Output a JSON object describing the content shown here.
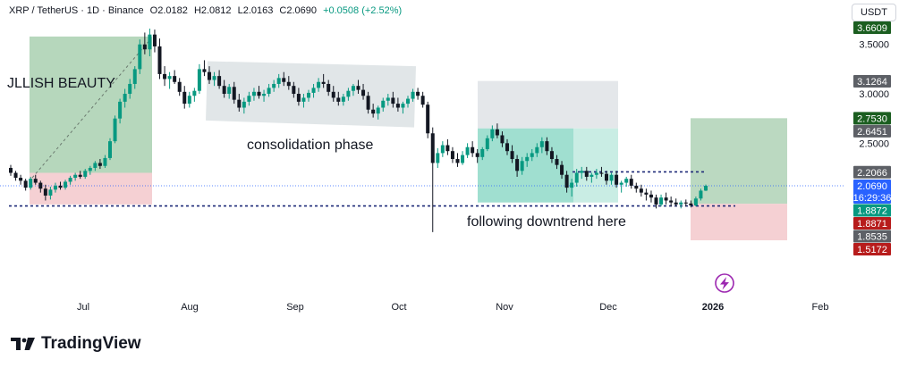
{
  "header": {
    "symbol": "XRP / TetherUS · 1D · Binance",
    "open": "O2.0182",
    "high": "H2.0812",
    "low": "L2.0163",
    "close": "C2.0690",
    "change": "+0.0508 (+2.52%)"
  },
  "currency_button": "USDT",
  "brand_name": "TradingView",
  "icons": {
    "logo": "tradingview-logo-icon",
    "event": "lightning-bolt-icon"
  },
  "colors": {
    "up": "#089981",
    "down": "#131722",
    "accent": "#2962ff",
    "target_zone": "#9ec9a6",
    "stop_zone": "#f2c4c8",
    "grey_zone": "#dfe3e6",
    "teal_zone": "#8fd9c8"
  },
  "chart_data": {
    "type": "candlestick",
    "instrument": "XRP / TetherUS",
    "interval": "1D",
    "exchange": "Binance",
    "last_bar": {
      "open": 2.0182,
      "high": 2.0812,
      "low": 2.0163,
      "close": 2.069,
      "change": 0.0508,
      "change_pct": 2.52
    },
    "y_ticks": [
      3.5,
      3.0,
      2.5
    ],
    "x_ticks": [
      "Jul",
      "Aug",
      "Sep",
      "Oct",
      "Nov",
      "Dec",
      "2026",
      "Feb"
    ],
    "price_labels": [
      {
        "text": "3.6609",
        "value": 3.6609,
        "color": "#1b5e20"
      },
      {
        "text": "3.1264",
        "value": 3.1264,
        "color": "#5d6066"
      },
      {
        "text": "2.7530",
        "value": 2.753,
        "color": "#1b5e20"
      },
      {
        "text": "2.6451",
        "value": 2.6451,
        "color": "#5d6066"
      },
      {
        "text": "2.2066",
        "value": 2.2066,
        "color": "#5d6066"
      },
      {
        "text": "2.0690",
        "value": 2.069,
        "color": "#2962ff",
        "sub": "16:29:36"
      },
      {
        "text": "1.8872",
        "value": 1.8872,
        "color": "#089981"
      },
      {
        "text": "1.8871",
        "value": 1.8871,
        "color": "#b71c1c"
      },
      {
        "text": "1.8535",
        "value": 1.8535,
        "color": "#5d6066"
      },
      {
        "text": "1.5172",
        "value": 1.5172,
        "color": "#b71c1c"
      }
    ],
    "annotations": [
      "JLLISH BEAUTY",
      "consolidation phase",
      "following downtrend here"
    ],
    "candles": [
      [
        2.25,
        2.28,
        2.17,
        2.2
      ],
      [
        2.2,
        2.22,
        2.12,
        2.15
      ],
      [
        2.15,
        2.18,
        2.08,
        2.12
      ],
      [
        2.12,
        2.14,
        2.02,
        2.05
      ],
      [
        2.05,
        2.16,
        2.03,
        2.14
      ],
      [
        2.14,
        2.18,
        2.08,
        2.1
      ],
      [
        2.1,
        2.12,
        2.0,
        2.04
      ],
      [
        2.04,
        2.08,
        1.92,
        1.97
      ],
      [
        1.97,
        2.06,
        1.93,
        2.03
      ],
      [
        2.03,
        2.1,
        2.0,
        2.07
      ],
      [
        2.07,
        2.11,
        2.03,
        2.05
      ],
      [
        2.05,
        2.13,
        2.03,
        2.11
      ],
      [
        2.11,
        2.17,
        2.08,
        2.15
      ],
      [
        2.15,
        2.2,
        2.12,
        2.18
      ],
      [
        2.18,
        2.22,
        2.14,
        2.16
      ],
      [
        2.16,
        2.24,
        2.14,
        2.22
      ],
      [
        2.22,
        2.27,
        2.18,
        2.25
      ],
      [
        2.25,
        2.32,
        2.22,
        2.3
      ],
      [
        2.3,
        2.34,
        2.24,
        2.27
      ],
      [
        2.27,
        2.38,
        2.25,
        2.35
      ],
      [
        2.35,
        2.55,
        2.33,
        2.52
      ],
      [
        2.52,
        2.78,
        2.5,
        2.75
      ],
      [
        2.75,
        2.95,
        2.7,
        2.92
      ],
      [
        2.92,
        3.05,
        2.86,
        3.0
      ],
      [
        3.0,
        3.15,
        2.95,
        3.1
      ],
      [
        3.1,
        3.28,
        3.05,
        3.25
      ],
      [
        3.25,
        3.55,
        3.2,
        3.5
      ],
      [
        3.5,
        3.62,
        3.4,
        3.45
      ],
      [
        3.45,
        3.66,
        3.38,
        3.6
      ],
      [
        3.6,
        3.65,
        3.42,
        3.48
      ],
      [
        3.48,
        3.56,
        3.15,
        3.2
      ],
      [
        3.2,
        3.28,
        3.08,
        3.15
      ],
      [
        3.15,
        3.22,
        3.05,
        3.18
      ],
      [
        3.18,
        3.24,
        3.1,
        3.12
      ],
      [
        3.12,
        3.16,
        2.98,
        3.02
      ],
      [
        3.02,
        3.08,
        2.85,
        2.9
      ],
      [
        2.9,
        3.02,
        2.86,
        2.98
      ],
      [
        2.98,
        3.06,
        2.92,
        3.03
      ],
      [
        3.03,
        3.3,
        3.0,
        3.25
      ],
      [
        3.25,
        3.34,
        3.18,
        3.22
      ],
      [
        3.22,
        3.28,
        3.1,
        3.14
      ],
      [
        3.14,
        3.22,
        3.08,
        3.18
      ],
      [
        3.18,
        3.24,
        3.05,
        3.08
      ],
      [
        3.08,
        3.14,
        2.96,
        3.0
      ],
      [
        3.0,
        3.1,
        2.95,
        3.07
      ],
      [
        3.07,
        3.12,
        2.9,
        2.94
      ],
      [
        2.94,
        3.0,
        2.82,
        2.86
      ],
      [
        2.86,
        2.96,
        2.8,
        2.92
      ],
      [
        2.92,
        3.02,
        2.88,
        2.98
      ],
      [
        2.98,
        3.06,
        2.93,
        3.02
      ],
      [
        3.02,
        3.08,
        2.95,
        2.98
      ],
      [
        2.98,
        3.04,
        2.92,
        3.0
      ],
      [
        3.0,
        3.1,
        2.97,
        3.06
      ],
      [
        3.06,
        3.14,
        3.02,
        3.1
      ],
      [
        3.1,
        3.2,
        3.06,
        3.16
      ],
      [
        3.16,
        3.22,
        3.08,
        3.12
      ],
      [
        3.12,
        3.18,
        3.04,
        3.08
      ],
      [
        3.08,
        3.12,
        2.96,
        3.0
      ],
      [
        3.0,
        3.06,
        2.88,
        2.92
      ],
      [
        2.92,
        3.0,
        2.86,
        2.96
      ],
      [
        2.96,
        3.04,
        2.92,
        3.01
      ],
      [
        3.01,
        3.1,
        2.96,
        3.06
      ],
      [
        3.06,
        3.16,
        3.02,
        3.12
      ],
      [
        3.12,
        3.2,
        3.06,
        3.1
      ],
      [
        3.1,
        3.14,
        2.98,
        3.02
      ],
      [
        3.02,
        3.08,
        2.92,
        2.96
      ],
      [
        2.96,
        3.02,
        2.88,
        2.92
      ],
      [
        2.92,
        3.0,
        2.88,
        2.97
      ],
      [
        2.97,
        3.06,
        2.93,
        3.03
      ],
      [
        3.03,
        3.1,
        2.98,
        3.08
      ],
      [
        3.08,
        3.14,
        3.0,
        3.04
      ],
      [
        3.04,
        3.1,
        2.94,
        2.98
      ],
      [
        2.98,
        3.02,
        2.8,
        2.84
      ],
      [
        2.84,
        2.9,
        2.76,
        2.8
      ],
      [
        2.8,
        2.88,
        2.74,
        2.86
      ],
      [
        2.86,
        2.96,
        2.82,
        2.93
      ],
      [
        2.93,
        3.0,
        2.88,
        2.96
      ],
      [
        2.96,
        3.02,
        2.86,
        2.9
      ],
      [
        2.9,
        2.96,
        2.82,
        2.86
      ],
      [
        2.86,
        2.92,
        2.8,
        2.9
      ],
      [
        2.9,
        2.98,
        2.86,
        2.95
      ],
      [
        2.95,
        3.05,
        2.92,
        3.02
      ],
      [
        3.02,
        3.06,
        2.94,
        2.98
      ],
      [
        2.98,
        3.02,
        2.86,
        2.89
      ],
      [
        2.89,
        2.92,
        2.55,
        2.6
      ],
      [
        2.6,
        2.66,
        1.6,
        2.3
      ],
      [
        2.3,
        2.45,
        2.25,
        2.4
      ],
      [
        2.4,
        2.52,
        2.36,
        2.48
      ],
      [
        2.48,
        2.54,
        2.38,
        2.42
      ],
      [
        2.42,
        2.46,
        2.3,
        2.34
      ],
      [
        2.34,
        2.4,
        2.26,
        2.3
      ],
      [
        2.3,
        2.42,
        2.28,
        2.38
      ],
      [
        2.38,
        2.5,
        2.35,
        2.46
      ],
      [
        2.46,
        2.52,
        2.36,
        2.4
      ],
      [
        2.4,
        2.44,
        2.3,
        2.36
      ],
      [
        2.36,
        2.46,
        2.33,
        2.44
      ],
      [
        2.44,
        2.58,
        2.42,
        2.55
      ],
      [
        2.55,
        2.68,
        2.52,
        2.64
      ],
      [
        2.64,
        2.7,
        2.55,
        2.58
      ],
      [
        2.58,
        2.62,
        2.46,
        2.5
      ],
      [
        2.5,
        2.54,
        2.38,
        2.42
      ],
      [
        2.42,
        2.48,
        2.3,
        2.34
      ],
      [
        2.34,
        2.38,
        2.16,
        2.22
      ],
      [
        2.22,
        2.36,
        2.18,
        2.32
      ],
      [
        2.32,
        2.4,
        2.26,
        2.36
      ],
      [
        2.36,
        2.44,
        2.32,
        2.4
      ],
      [
        2.4,
        2.5,
        2.36,
        2.46
      ],
      [
        2.46,
        2.56,
        2.4,
        2.52
      ],
      [
        2.52,
        2.56,
        2.38,
        2.42
      ],
      [
        2.42,
        2.46,
        2.3,
        2.34
      ],
      [
        2.34,
        2.38,
        2.24,
        2.28
      ],
      [
        2.28,
        2.32,
        2.14,
        2.18
      ],
      [
        2.18,
        2.22,
        2.0,
        2.05
      ],
      [
        2.05,
        2.14,
        1.96,
        2.1
      ],
      [
        2.1,
        2.24,
        2.06,
        2.2
      ],
      [
        2.2,
        2.26,
        2.14,
        2.22
      ],
      [
        2.22,
        2.26,
        2.12,
        2.16
      ],
      [
        2.16,
        2.2,
        2.1,
        2.18
      ],
      [
        2.18,
        2.24,
        2.14,
        2.2
      ],
      [
        2.2,
        2.26,
        2.16,
        2.19
      ],
      [
        2.19,
        2.22,
        2.08,
        2.12
      ],
      [
        2.12,
        2.2,
        2.08,
        2.18
      ],
      [
        2.18,
        2.22,
        2.05,
        2.08
      ],
      [
        2.08,
        2.12,
        2.0,
        2.1
      ],
      [
        2.1,
        2.16,
        2.06,
        2.14
      ],
      [
        2.14,
        2.18,
        2.04,
        2.07
      ],
      [
        2.07,
        2.1,
        2.0,
        2.04
      ],
      [
        2.04,
        2.08,
        1.96,
        2.0
      ],
      [
        2.0,
        2.04,
        1.92,
        1.98
      ],
      [
        1.98,
        2.02,
        1.9,
        1.95
      ],
      [
        1.95,
        1.98,
        1.84,
        1.88
      ],
      [
        1.88,
        1.98,
        1.86,
        1.95
      ],
      [
        1.95,
        2.0,
        1.88,
        1.92
      ],
      [
        1.92,
        1.96,
        1.86,
        1.9
      ],
      [
        1.9,
        1.94,
        1.86,
        1.88
      ],
      [
        1.88,
        1.92,
        1.84,
        1.9
      ],
      [
        1.9,
        1.93,
        1.86,
        1.89
      ],
      [
        1.89,
        1.92,
        1.85,
        1.87
      ],
      [
        1.87,
        1.96,
        1.86,
        1.94
      ],
      [
        1.94,
        2.04,
        1.92,
        2.02
      ],
      [
        2.02,
        2.0812,
        2.0163,
        2.069
      ]
    ]
  }
}
